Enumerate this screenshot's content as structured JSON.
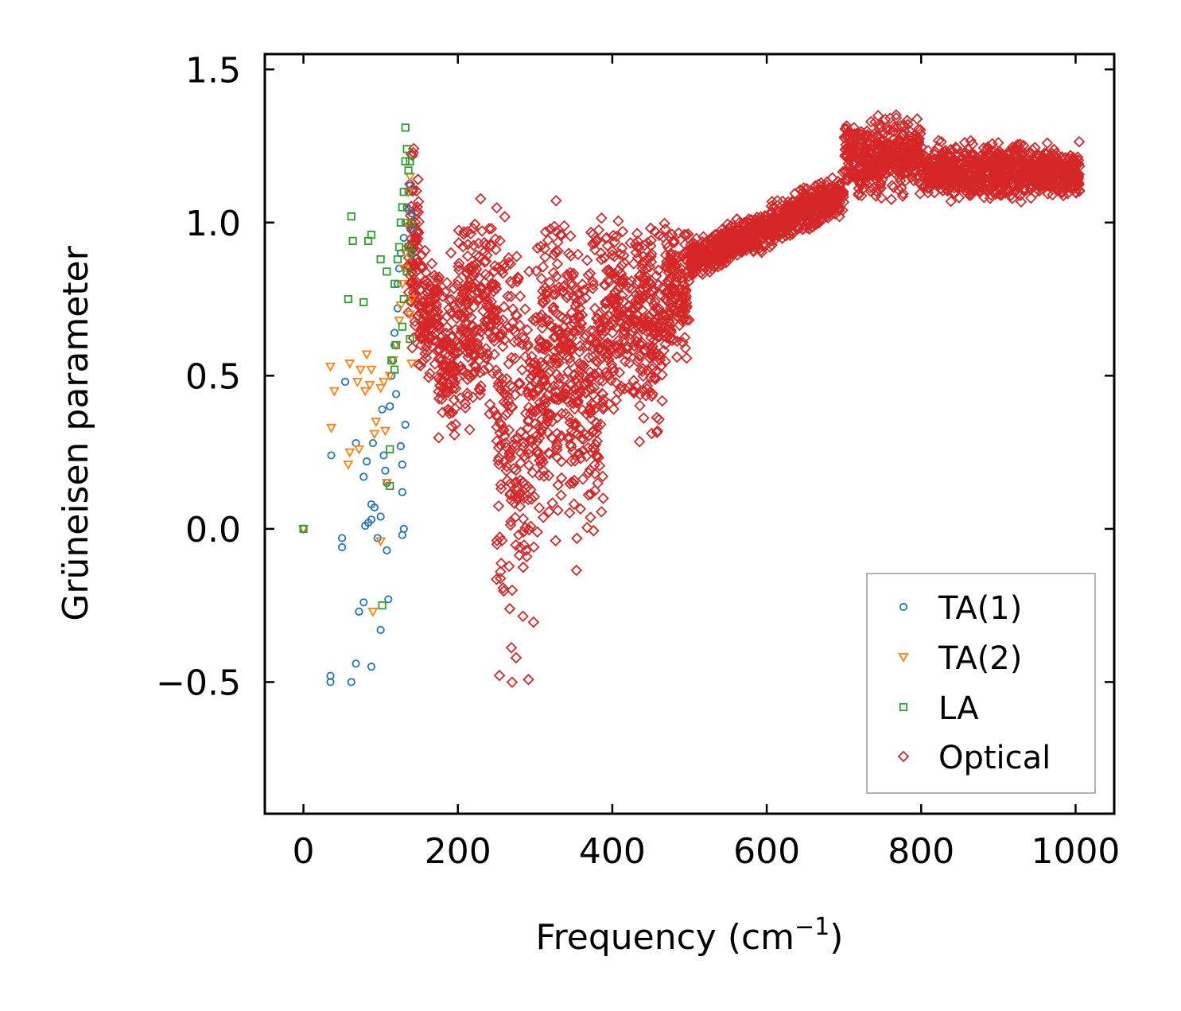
{
  "chart_data": {
    "type": "scatter",
    "xlabel": "Frequency (cm",
    "xlabel_sup": "−1",
    "xlabel_close": ")",
    "ylabel": "Grüneisen parameter",
    "xlim": [
      -50,
      1050
    ],
    "ylim": [
      -0.93,
      1.55
    ],
    "xticks": [
      0,
      200,
      400,
      600,
      800,
      1000
    ],
    "xtick_labels": [
      "0",
      "200",
      "400",
      "600",
      "800",
      "1000"
    ],
    "yticks": [
      -0.5,
      0.0,
      0.5,
      1.0,
      1.5
    ],
    "ytick_labels": [
      "−0.5",
      "0.0",
      "0.5",
      "1.0",
      "1.5"
    ],
    "legend_position": "lower-right",
    "series": [
      {
        "name": "TA(1)",
        "marker": "circle",
        "color": "#1f77b4",
        "points": [
          [
            0,
            0.0
          ],
          [
            35,
            -0.48
          ],
          [
            35,
            -0.5
          ],
          [
            36,
            0.24
          ],
          [
            50,
            -0.03
          ],
          [
            50,
            -0.06
          ],
          [
            54,
            0.48
          ],
          [
            62,
            -0.5
          ],
          [
            68,
            0.28
          ],
          [
            68,
            -0.44
          ],
          [
            72,
            -0.27
          ],
          [
            78,
            0.17
          ],
          [
            78,
            -0.24
          ],
          [
            80,
            0.01
          ],
          [
            82,
            0.22
          ],
          [
            84,
            0.02
          ],
          [
            88,
            0.03
          ],
          [
            88,
            0.08
          ],
          [
            88,
            -0.45
          ],
          [
            90,
            0.28
          ],
          [
            92,
            0.07
          ],
          [
            96,
            -0.03
          ],
          [
            100,
            0.04
          ],
          [
            100,
            -0.33
          ],
          [
            102,
            0.39
          ],
          [
            104,
            0.24
          ],
          [
            106,
            0.19
          ],
          [
            108,
            0.15
          ],
          [
            108,
            -0.07
          ],
          [
            110,
            -0.23
          ],
          [
            112,
            0.4
          ],
          [
            114,
            0.5
          ],
          [
            116,
            0.55
          ],
          [
            118,
            0.6
          ],
          [
            118,
            0.64
          ],
          [
            120,
            0.44
          ],
          [
            122,
            0.72
          ],
          [
            122,
            0.8
          ],
          [
            124,
            0.85
          ],
          [
            126,
            0.9
          ],
          [
            126,
            0.27
          ],
          [
            128,
            0.21
          ],
          [
            128,
            0.12
          ],
          [
            128,
            -0.02
          ],
          [
            130,
            0.95
          ],
          [
            130,
            0.0
          ],
          [
            132,
            0.34
          ],
          [
            132,
            1.0
          ],
          [
            134,
            1.05
          ],
          [
            136,
            1.1
          ],
          [
            138,
            1.12
          ],
          [
            140,
            1.03
          ],
          [
            140,
            0.9
          ],
          [
            141,
            0.98
          ]
        ]
      },
      {
        "name": "TA(2)",
        "marker": "triangle",
        "color": "#ff7f0e",
        "points": [
          [
            0,
            0.0
          ],
          [
            35,
            0.53
          ],
          [
            36,
            0.33
          ],
          [
            40,
            0.45
          ],
          [
            58,
            0.21
          ],
          [
            60,
            0.25
          ],
          [
            60,
            0.54
          ],
          [
            70,
            0.48
          ],
          [
            72,
            0.26
          ],
          [
            74,
            0.52
          ],
          [
            80,
            0.45
          ],
          [
            82,
            0.57
          ],
          [
            86,
            0.47
          ],
          [
            88,
            0.52
          ],
          [
            90,
            -0.27
          ],
          [
            92,
            0.31
          ],
          [
            94,
            0.35
          ],
          [
            100,
            0.46
          ],
          [
            100,
            -0.04
          ],
          [
            104,
            0.48
          ],
          [
            106,
            0.32
          ],
          [
            108,
            0.15
          ],
          [
            112,
            0.5
          ],
          [
            116,
            0.55
          ],
          [
            120,
            0.6
          ],
          [
            124,
            0.68
          ],
          [
            126,
            0.73
          ],
          [
            128,
            0.8
          ],
          [
            130,
            0.85
          ],
          [
            132,
            0.9
          ],
          [
            134,
            1.0
          ],
          [
            136,
            1.1
          ],
          [
            138,
            1.15
          ],
          [
            138,
            0.7
          ],
          [
            140,
            0.75
          ],
          [
            140,
            0.54
          ]
        ]
      },
      {
        "name": "LA",
        "marker": "square",
        "color": "#2ca02c",
        "points": [
          [
            0,
            0.0
          ],
          [
            62,
            1.02
          ],
          [
            64,
            0.94
          ],
          [
            58,
            0.75
          ],
          [
            78,
            0.74
          ],
          [
            84,
            0.94
          ],
          [
            88,
            0.96
          ],
          [
            100,
            0.88
          ],
          [
            108,
            0.84
          ],
          [
            112,
            0.26
          ],
          [
            112,
            0.14
          ],
          [
            114,
            0.55
          ],
          [
            118,
            0.52
          ],
          [
            118,
            0.8
          ],
          [
            120,
            0.6
          ],
          [
            122,
            0.88
          ],
          [
            124,
            0.92
          ],
          [
            126,
            1.0
          ],
          [
            128,
            1.05
          ],
          [
            128,
            0.66
          ],
          [
            130,
            1.1
          ],
          [
            130,
            0.75
          ],
          [
            132,
            1.2
          ],
          [
            132,
            1.31
          ],
          [
            134,
            1.24
          ],
          [
            134,
            0.84
          ],
          [
            136,
            1.17
          ],
          [
            136,
            0.92
          ],
          [
            138,
            1.2
          ],
          [
            138,
            0.62
          ],
          [
            140,
            0.9
          ],
          [
            140,
            1.0
          ],
          [
            102,
            -0.25
          ]
        ]
      },
      {
        "name": "Optical",
        "marker": "diamond",
        "color": "#d62728"
      }
    ]
  }
}
